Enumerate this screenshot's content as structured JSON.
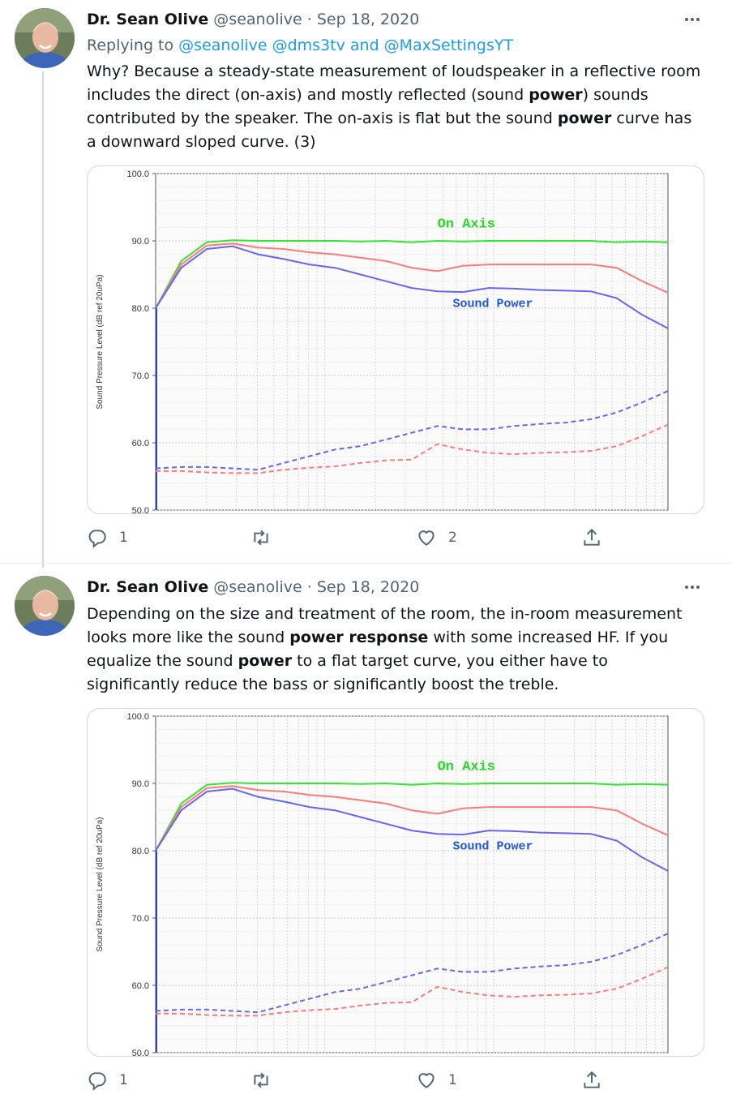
{
  "tweets": [
    {
      "author_name": "Dr. Sean Olive",
      "handle": "@seanolive",
      "separator": "·",
      "date": "Sep 18, 2020",
      "replying_prefix": "Replying to",
      "reply_handles": "@seanolive @dms3tv and @MaxSettingsYT",
      "text_segments": [
        {
          "t": "Why? Because a steady-state measurement of loudspeaker in a reflective room includes the direct (on-axis) and mostly reflected (sound ",
          "b": false
        },
        {
          "t": "power",
          "b": true
        },
        {
          "t": ") sounds contributed by the speaker. The on-axis is flat but the sound ",
          "b": false
        },
        {
          "t": "power",
          "b": true
        },
        {
          "t": " curve has a downward sloped curve. (3)",
          "b": false
        }
      ],
      "replies": "1",
      "retweets": "",
      "likes": "2"
    },
    {
      "author_name": "Dr. Sean Olive",
      "handle": "@seanolive",
      "separator": "·",
      "date": "Sep 18, 2020",
      "text_segments": [
        {
          "t": "Depending on the size and treatment of the room, the in-room measurement looks more like the sound ",
          "b": false
        },
        {
          "t": "power response",
          "b": true
        },
        {
          "t": " with some increased HF. If you equalize the sound ",
          "b": false
        },
        {
          "t": "power",
          "b": true
        },
        {
          "t": " to a flat target curve, you either have to significantly reduce the bass or significantly boost the treble.",
          "b": false
        }
      ],
      "replies": "1",
      "retweets": "",
      "likes": "1"
    }
  ],
  "icons": {
    "reply": "reply-icon",
    "retweet": "retweet-icon",
    "like": "heart-icon",
    "share": "share-icon",
    "more": "more-icon"
  },
  "colors": {
    "accent": "#1d9bf0",
    "muted": "#536471",
    "on_axis": "#33e633",
    "first_reflection": "#ff7a7a",
    "sound_power": "#6666ee"
  },
  "chart_data": [
    {
      "type": "line",
      "title": "",
      "xlabel": "",
      "ylabel": "Sound Pressure Level (dB ref 20uPa)",
      "ylim": [
        50,
        100
      ],
      "yticks": [
        "100.0",
        "90.0",
        "80.0",
        "70.0",
        "60.0",
        "50.0"
      ],
      "grid": true,
      "annotations": [
        "On Axis",
        "Sound Power"
      ],
      "x": [
        0,
        0.05,
        0.1,
        0.15,
        0.2,
        0.25,
        0.3,
        0.35,
        0.4,
        0.45,
        0.5,
        0.55,
        0.6,
        0.65,
        0.7,
        0.75,
        0.8,
        0.85,
        0.9,
        0.95,
        1.0
      ],
      "series": [
        {
          "name": "On Axis",
          "color": "#33e633",
          "style": "solid",
          "values": [
            80,
            87,
            89.8,
            90.1,
            90,
            90,
            90,
            90,
            89.9,
            90,
            89.8,
            90,
            89.9,
            90,
            90,
            90,
            90,
            90,
            89.8,
            89.9,
            89.8
          ]
        },
        {
          "name": "",
          "color": "#ff7a7a",
          "style": "solid",
          "values": [
            80,
            86.5,
            89.3,
            89.6,
            89,
            88.8,
            88.3,
            88,
            87.5,
            87,
            86,
            85.5,
            86.3,
            86.5,
            86.5,
            86.5,
            86.5,
            86.5,
            86,
            84,
            82.3
          ]
        },
        {
          "name": "Sound Power",
          "color": "#6666ee",
          "style": "solid",
          "values": [
            80,
            86,
            88.8,
            89.2,
            88,
            87.3,
            86.5,
            86,
            85,
            84,
            83,
            82.5,
            82.4,
            83,
            82.9,
            82.7,
            82.6,
            82.5,
            81.5,
            79,
            77
          ]
        },
        {
          "name": "",
          "color": "#6666ee",
          "style": "dashed",
          "values": [
            56.2,
            56.4,
            56.4,
            56.2,
            56,
            57,
            58,
            59,
            59.5,
            60.5,
            61.5,
            62.5,
            62,
            62,
            62.5,
            62.8,
            63,
            63.5,
            64.5,
            66,
            67.7
          ]
        },
        {
          "name": "",
          "color": "#ff7a7a",
          "style": "dashed",
          "values": [
            55.8,
            55.8,
            55.6,
            55.5,
            55.5,
            56,
            56.3,
            56.5,
            57,
            57.4,
            57.5,
            59.8,
            59,
            58.5,
            58.3,
            58.5,
            58.6,
            58.8,
            59.5,
            61,
            62.7
          ]
        }
      ]
    },
    {
      "type": "line",
      "title": "",
      "xlabel": "",
      "ylabel": "Sound Pressure Level (dB ref 20uPa)",
      "ylim": [
        50,
        100
      ],
      "yticks": [
        "100.0",
        "90.0",
        "80.0",
        "70.0",
        "60.0",
        "50.0"
      ],
      "grid": true,
      "annotations": [
        "On Axis",
        "Sound Power"
      ],
      "x": [
        0,
        0.05,
        0.1,
        0.15,
        0.2,
        0.25,
        0.3,
        0.35,
        0.4,
        0.45,
        0.5,
        0.55,
        0.6,
        0.65,
        0.7,
        0.75,
        0.8,
        0.85,
        0.9,
        0.95,
        1.0
      ],
      "series": [
        {
          "name": "On Axis",
          "color": "#33e633",
          "style": "solid",
          "values": [
            80,
            87,
            89.8,
            90.1,
            90,
            90,
            90,
            90,
            89.9,
            90,
            89.8,
            90,
            89.9,
            90,
            90,
            90,
            90,
            90,
            89.8,
            89.9,
            89.8
          ]
        },
        {
          "name": "",
          "color": "#ff7a7a",
          "style": "solid",
          "values": [
            80,
            86.5,
            89.3,
            89.6,
            89,
            88.8,
            88.3,
            88,
            87.5,
            87,
            86,
            85.5,
            86.3,
            86.5,
            86.5,
            86.5,
            86.5,
            86.5,
            86,
            84,
            82.3
          ]
        },
        {
          "name": "Sound Power",
          "color": "#6666ee",
          "style": "solid",
          "values": [
            80,
            86,
            88.8,
            89.2,
            88,
            87.3,
            86.5,
            86,
            85,
            84,
            83,
            82.5,
            82.4,
            83,
            82.9,
            82.7,
            82.6,
            82.5,
            81.5,
            79,
            77
          ]
        },
        {
          "name": "",
          "color": "#6666ee",
          "style": "dashed",
          "values": [
            56.2,
            56.4,
            56.4,
            56.2,
            56,
            57,
            58,
            59,
            59.5,
            60.5,
            61.5,
            62.5,
            62,
            62,
            62.5,
            62.8,
            63,
            63.5,
            64.5,
            66,
            67.7
          ]
        },
        {
          "name": "",
          "color": "#ff7a7a",
          "style": "dashed",
          "values": [
            55.8,
            55.8,
            55.6,
            55.5,
            55.5,
            56,
            56.3,
            56.5,
            57,
            57.4,
            57.5,
            59.8,
            59,
            58.5,
            58.3,
            58.5,
            58.6,
            58.8,
            59.5,
            61,
            62.7
          ]
        }
      ]
    }
  ]
}
